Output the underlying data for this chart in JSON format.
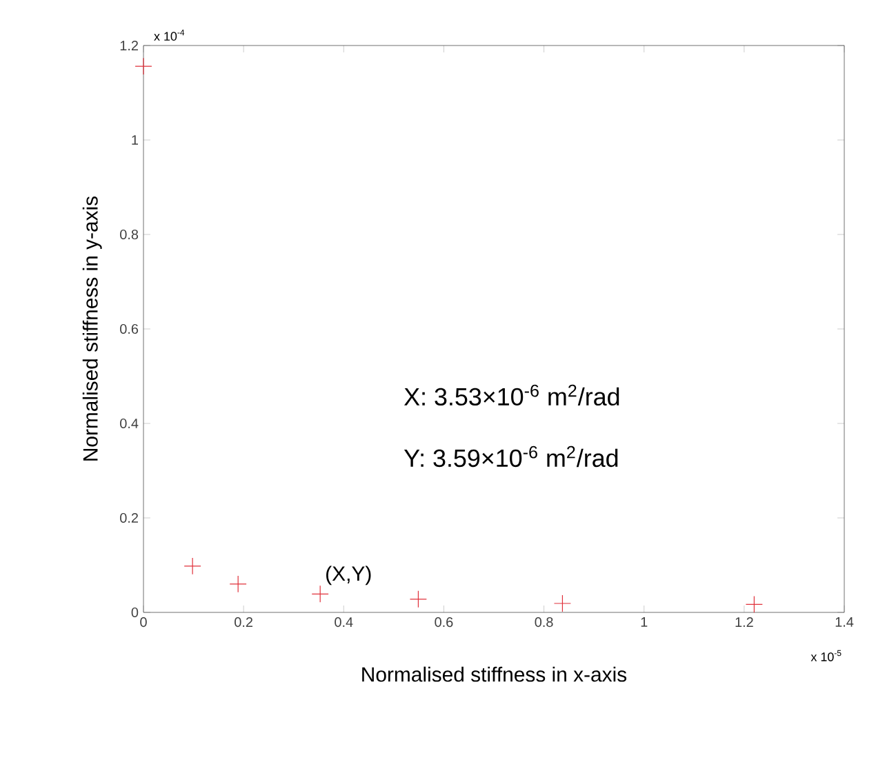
{
  "chart_data": {
    "type": "scatter",
    "xlabel": "Normalised stiffness in x-axis",
    "ylabel": "Normalised stiffness in y-axis",
    "x": [
      0,
      0.098,
      0.189,
      0.353,
      0.549,
      0.837,
      1.22
    ],
    "values": [
      1.156,
      0.098,
      0.06,
      0.039,
      0.028,
      0.019,
      0.017
    ],
    "color": "#e0303a",
    "marker": "cross",
    "xlim": [
      0,
      1.4
    ],
    "ylim": [
      0,
      1.2
    ],
    "xticks": [
      0,
      0.2,
      0.4,
      0.6,
      0.8,
      1,
      1.2,
      1.4
    ],
    "yticks": [
      0,
      0.2,
      0.4,
      0.6,
      0.8,
      1,
      1.2
    ],
    "annotations": [
      "x 10$^{-4}$",
      "x 10$^{-5}$",
      "X: 3.53×10$^{-6}$ m$^{2}$/rad",
      "Y: 3.59×10$^{-6}$ m$^{2}$/rad",
      {
        "text": "(X,Y)",
        "x": 0.353,
        "y": 0.039
      }
    ],
    "grid": false
  }
}
